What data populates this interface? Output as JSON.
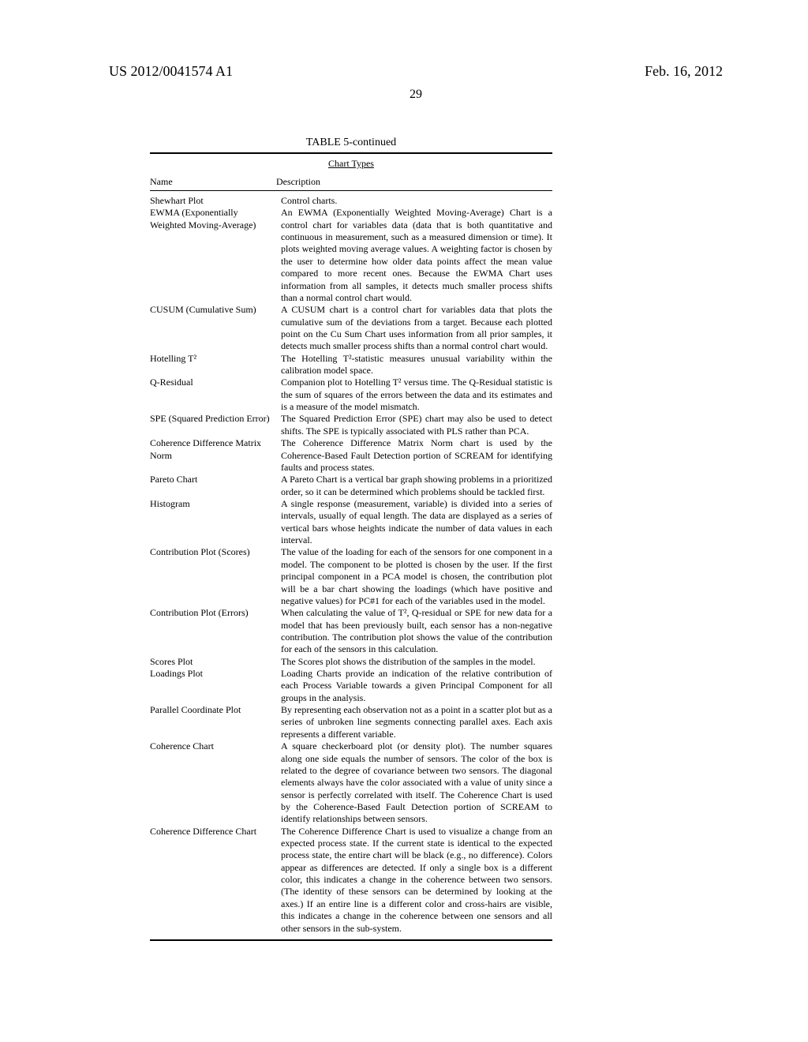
{
  "header": {
    "pub_number": "US 2012/0041574 A1",
    "pub_date": "Feb. 16, 2012",
    "page_number": "29"
  },
  "table": {
    "title": "TABLE 5-continued",
    "subtitle": "Chart Types",
    "columns": {
      "name": "Name",
      "description": "Description"
    },
    "rows": [
      {
        "name": "Shewhart Plot",
        "desc": "Control charts."
      },
      {
        "name": "EWMA (Exponentially Weighted Moving-Average)",
        "desc": "An EWMA (Exponentially Weighted Moving-Average) Chart is a control chart for variables data (data that is both quantitative and continuous in measurement, such as a measured dimension or time). It plots weighted moving average values. A weighting factor is chosen by the user to determine how older data points affect the mean value compared to more recent ones. Because the EWMA Chart uses information from all samples, it detects much smaller process shifts than a normal control chart would."
      },
      {
        "name": "CUSUM (Cumulative Sum)",
        "desc": "A CUSUM chart is a control chart for variables data that plots the cumulative sum of the deviations from a target. Because each plotted point on the Cu Sum Chart uses information from all prior samples, it detects much smaller process shifts than a normal control chart would."
      },
      {
        "name": "Hotelling T²",
        "desc": "The Hotelling T²-statistic measures unusual variability within the calibration model space."
      },
      {
        "name": "Q-Residual",
        "desc": "Companion plot to Hotelling T² versus time. The Q-Residual statistic is the sum of squares of the errors between the data and its estimates and is a measure of the model mismatch."
      },
      {
        "name": "SPE (Squared Prediction Error)",
        "desc": "The Squared Prediction Error (SPE) chart may also be used to detect shifts. The SPE is typically associated with PLS rather than PCA."
      },
      {
        "name": "Coherence Difference Matrix Norm",
        "desc": "The Coherence Difference Matrix Norm chart is used by the Coherence-Based Fault Detection portion of SCREAM for identifying faults and process states."
      },
      {
        "name": "Pareto Chart",
        "desc": "A Pareto Chart is a vertical bar graph showing problems in a prioritized order, so it can be determined which problems should be tackled first."
      },
      {
        "name": "Histogram",
        "desc": "A single response (measurement, variable) is divided into a series of intervals, usually of equal length. The data are displayed as a series of vertical bars whose heights indicate the number of data values in each interval."
      },
      {
        "name": "Contribution Plot (Scores)",
        "desc": "The value of the loading for each of the sensors for one component in a model. The component to be plotted is chosen by the user. If the first principal component in a PCA model is chosen, the contribution plot will be a bar chart showing the loadings (which have positive and negative values) for PC#1 for each of the variables used in the model."
      },
      {
        "name": "Contribution Plot (Errors)",
        "desc": "When calculating the value of T², Q-residual or SPE for new data for a model that has been previously built, each sensor has a non-negative contribution. The contribution plot shows the value of the contribution for each of the sensors in this calculation."
      },
      {
        "name": "Scores Plot",
        "desc": "The Scores plot shows the distribution of the samples in the model."
      },
      {
        "name": "Loadings Plot",
        "desc": "Loading Charts provide an indication of the relative contribution of each Process Variable towards a given Principal Component for all groups in the analysis."
      },
      {
        "name": "Parallel Coordinate Plot",
        "desc": "By representing each observation not as a point in a scatter plot but as a series of unbroken line segments connecting parallel axes. Each axis represents a different variable."
      },
      {
        "name": "Coherence Chart",
        "desc": "A square checkerboard plot (or density plot). The number squares along one side equals the number of sensors. The color of the box is related to the degree of covariance between two sensors. The diagonal elements always have the color associated with a value of unity since a sensor is perfectly correlated with itself. The Coherence Chart is used by the Coherence-Based Fault Detection portion of SCREAM to identify relationships between sensors."
      },
      {
        "name": "Coherence Difference Chart",
        "desc": "The Coherence Difference Chart is used to visualize a change from an expected process state. If the current state is identical to the expected process state, the entire chart will be black (e.g., no difference). Colors appear as differences are detected. If only a single box is a different color, this indicates a change in the coherence between two sensors. (The identity of these sensors can be determined by looking at the axes.) If an entire line is a different color and cross-hairs are visible, this indicates a change in the coherence between one sensors and all other sensors in the sub-system."
      }
    ]
  }
}
